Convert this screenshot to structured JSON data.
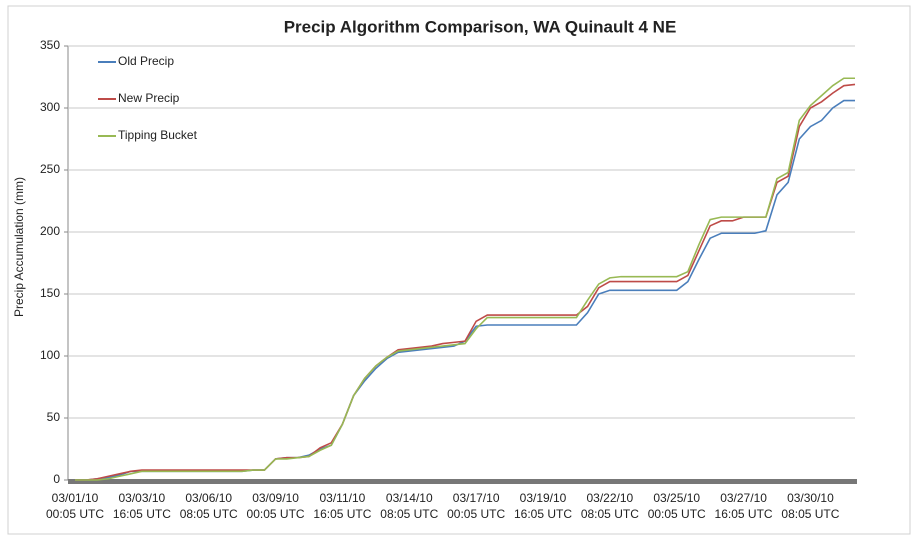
{
  "chart_data": {
    "type": "line",
    "title": "Precip Algorithm Comparison, WA Quinault 4 NE",
    "ylabel": "Precip Accumulation (mm)",
    "ylim": [
      0,
      350
    ],
    "yticks": [
      0,
      50,
      100,
      150,
      200,
      250,
      300,
      350
    ],
    "grid": true,
    "legend": "upper left",
    "categories": [
      "03/01/10\n00:05 UTC",
      null,
      null,
      null,
      null,
      null,
      "03/03/10\n16:05 UTC",
      null,
      null,
      null,
      null,
      null,
      "03/06/10\n08:05 UTC",
      null,
      null,
      null,
      null,
      null,
      "03/09/10\n00:05 UTC",
      null,
      null,
      null,
      null,
      null,
      "03/11/10\n16:05 UTC",
      null,
      null,
      null,
      null,
      null,
      "03/14/10\n08:05 UTC",
      null,
      null,
      null,
      null,
      null,
      "03/17/10\n00:05 UTC",
      null,
      null,
      null,
      null,
      null,
      "03/19/10\n16:05 UTC",
      null,
      null,
      null,
      null,
      null,
      "03/22/10\n08:05 UTC",
      null,
      null,
      null,
      null,
      null,
      "03/25/10\n00:05 UTC",
      null,
      null,
      null,
      null,
      null,
      "03/27/10\n16:05 UTC",
      null,
      null,
      null,
      null,
      null,
      "03/30/10\n08:05 UTC",
      null,
      null,
      null,
      null
    ],
    "series": [
      {
        "name": "Old Precip",
        "color": "#4a7ebb",
        "values": [
          0,
          0,
          1,
          2,
          4,
          7,
          7,
          7,
          7,
          7,
          7,
          7,
          7,
          7,
          7,
          7,
          8,
          8,
          17,
          18,
          18,
          20,
          25,
          28,
          45,
          68,
          80,
          90,
          98,
          103,
          104,
          105,
          106,
          107,
          108,
          112,
          124,
          125,
          125,
          125,
          125,
          125,
          125,
          125,
          125,
          125,
          135,
          150,
          153,
          153,
          153,
          153,
          153,
          153,
          153,
          160,
          178,
          195,
          199,
          199,
          199,
          199,
          201,
          230,
          240,
          275,
          285,
          290,
          300,
          306,
          306
        ]
      },
      {
        "name": "New Precip",
        "color": "#be4b48",
        "values": [
          0,
          0,
          1,
          3,
          5,
          7,
          8,
          8,
          8,
          8,
          8,
          8,
          8,
          8,
          8,
          8,
          8,
          8,
          17,
          18,
          18,
          19,
          26,
          30,
          45,
          68,
          82,
          92,
          99,
          105,
          106,
          107,
          108,
          110,
          111,
          112,
          128,
          133,
          133,
          133,
          133,
          133,
          133,
          133,
          133,
          133,
          140,
          155,
          160,
          160,
          160,
          160,
          160,
          160,
          160,
          165,
          185,
          205,
          209,
          209,
          212,
          212,
          212,
          240,
          245,
          285,
          300,
          305,
          312,
          318,
          319
        ]
      },
      {
        "name": "Tipping Bucket",
        "color": "#98b954",
        "values": [
          0,
          0,
          0,
          1,
          3,
          5,
          7,
          7,
          7,
          7,
          7,
          7,
          7,
          7,
          7,
          7,
          8,
          8,
          17,
          17,
          18,
          19,
          24,
          28,
          45,
          68,
          82,
          92,
          99,
          104,
          105,
          106,
          107,
          108,
          109,
          110,
          122,
          131,
          131,
          131,
          131,
          131,
          131,
          131,
          131,
          131,
          145,
          158,
          163,
          164,
          164,
          164,
          164,
          164,
          164,
          168,
          190,
          210,
          212,
          212,
          212,
          212,
          212,
          243,
          248,
          290,
          302,
          310,
          318,
          324,
          324
        ]
      }
    ]
  }
}
